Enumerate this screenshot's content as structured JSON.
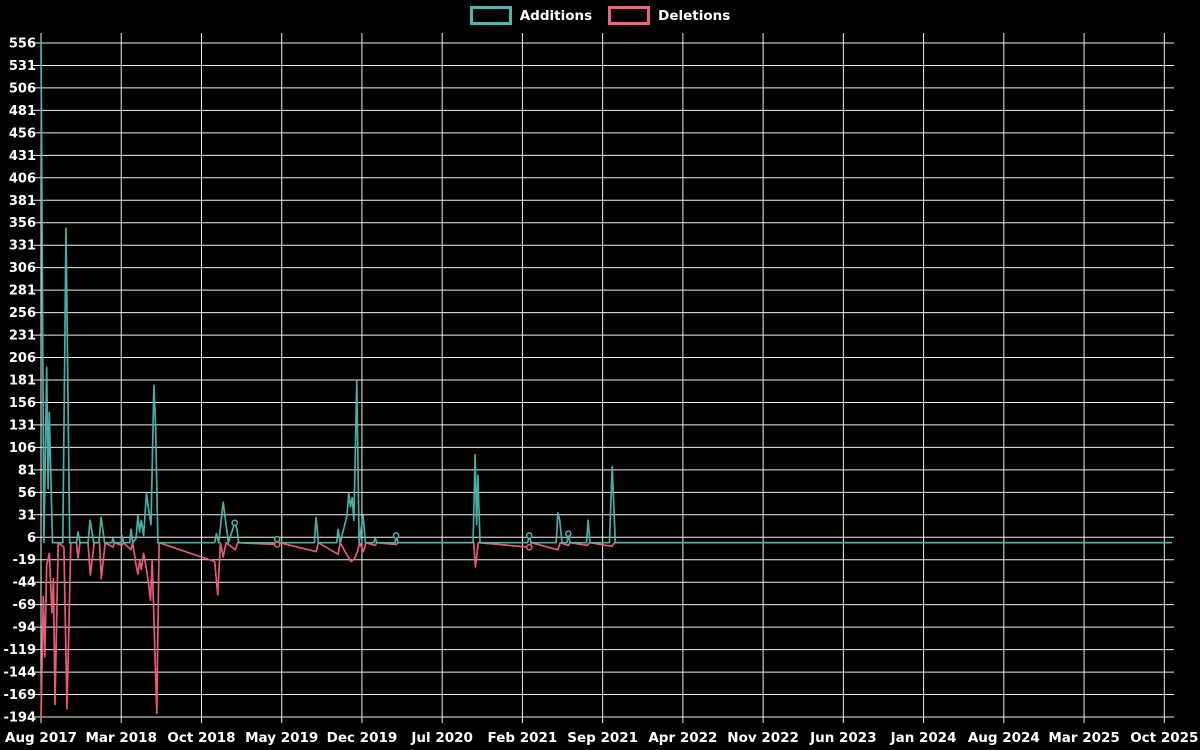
{
  "colors": {
    "background": "#000000",
    "gridline": "#eeeeee",
    "tick_text": "#ffffff",
    "additions": "#4db6ac",
    "deletions": "#f2607a"
  },
  "chart_data": {
    "type": "line",
    "title": "",
    "legend_position": "top-center",
    "grid": true,
    "x_axis": {
      "tick_labels": [
        "Aug 2017",
        "Mar 2018",
        "Oct 2018",
        "May 2019",
        "Dec 2019",
        "Jul 2020",
        "Feb 2021",
        "Sep 2021",
        "Apr 2022",
        "Nov 2022",
        "Jun 2023",
        "Jan 2024",
        "Aug 2024",
        "Mar 2025",
        "Oct 2025"
      ],
      "months_per_tick": 7,
      "x_unit": "months since Aug 2017"
    },
    "y_axis": {
      "min": -194,
      "max": 556,
      "tick_step": 25,
      "tick_labels": [
        "556",
        "531",
        "506",
        "481",
        "456",
        "431",
        "406",
        "381",
        "356",
        "331",
        "306",
        "281",
        "256",
        "231",
        "206",
        "181",
        "156",
        "131",
        "106",
        "81",
        "56",
        "31",
        "6",
        "-19",
        "-44",
        "-69",
        "-94",
        "-119",
        "-144",
        "-169",
        "-194"
      ]
    },
    "series": [
      {
        "name": "Additions",
        "color": "#4db6ac",
        "points": [
          [
            0,
            556
          ],
          [
            0.25,
            0
          ],
          [
            0.5,
            195
          ],
          [
            0.62,
            60
          ],
          [
            0.72,
            145
          ],
          [
            1.0,
            0
          ],
          [
            1.9,
            0
          ],
          [
            2.18,
            350
          ],
          [
            2.5,
            0
          ],
          [
            3.1,
            0
          ],
          [
            3.23,
            12
          ],
          [
            3.4,
            0
          ],
          [
            4.1,
            0
          ],
          [
            4.28,
            25
          ],
          [
            4.6,
            0
          ],
          [
            5.05,
            0
          ],
          [
            5.24,
            28
          ],
          [
            5.55,
            0
          ],
          [
            6.2,
            0
          ],
          [
            6.28,
            5
          ],
          [
            6.4,
            0
          ],
          [
            7.0,
            0
          ],
          [
            7.07,
            8
          ],
          [
            7.2,
            0
          ],
          [
            7.75,
            0
          ],
          [
            7.85,
            15
          ],
          [
            8.0,
            0
          ],
          [
            8.3,
            5
          ],
          [
            8.45,
            30
          ],
          [
            8.6,
            12
          ],
          [
            8.75,
            25
          ],
          [
            8.95,
            8
          ],
          [
            9.2,
            55
          ],
          [
            9.35,
            40
          ],
          [
            9.6,
            20
          ],
          [
            9.85,
            175
          ],
          [
            10.0,
            130
          ],
          [
            10.2,
            0
          ],
          [
            15.15,
            0
          ],
          [
            15.3,
            10
          ],
          [
            15.5,
            0
          ],
          [
            15.9,
            45
          ],
          [
            16.1,
            25
          ],
          [
            16.35,
            0
          ],
          [
            16.9,
            22
          ],
          [
            17.1,
            15
          ],
          [
            17.25,
            0
          ],
          [
            20.5,
            0
          ],
          [
            20.6,
            4
          ],
          [
            20.75,
            0
          ],
          [
            23.85,
            0
          ],
          [
            24.0,
            28
          ],
          [
            24.2,
            0
          ],
          [
            25.8,
            0
          ],
          [
            25.92,
            15
          ],
          [
            26.1,
            0
          ],
          [
            26.7,
            30
          ],
          [
            26.85,
            55
          ],
          [
            27.0,
            40
          ],
          [
            27.15,
            50
          ],
          [
            27.3,
            25
          ],
          [
            27.55,
            180
          ],
          [
            27.75,
            0
          ],
          [
            28.1,
            30
          ],
          [
            28.3,
            0
          ],
          [
            29.05,
            0
          ],
          [
            29.15,
            5
          ],
          [
            29.3,
            0
          ],
          [
            30.9,
            0
          ],
          [
            30.98,
            8
          ],
          [
            31.15,
            0
          ],
          [
            37.7,
            0
          ],
          [
            37.87,
            98
          ],
          [
            38.0,
            20
          ],
          [
            38.12,
            75
          ],
          [
            38.3,
            0
          ],
          [
            42.45,
            0
          ],
          [
            42.6,
            8
          ],
          [
            42.75,
            0
          ],
          [
            44.95,
            0
          ],
          [
            45.1,
            33
          ],
          [
            45.25,
            25
          ],
          [
            45.45,
            0
          ],
          [
            45.9,
            0
          ],
          [
            46.0,
            10
          ],
          [
            46.15,
            0
          ],
          [
            47.6,
            0
          ],
          [
            47.73,
            25
          ],
          [
            47.9,
            0
          ],
          [
            49.6,
            0
          ],
          [
            49.83,
            85
          ],
          [
            50.1,
            0
          ],
          [
            98.6,
            0
          ]
        ],
        "markers": [
          [
            16.9,
            22
          ],
          [
            20.6,
            4
          ],
          [
            30.98,
            8
          ],
          [
            42.6,
            8
          ],
          [
            46.0,
            10
          ]
        ]
      },
      {
        "name": "Deletions",
        "color": "#f2607a",
        "points": [
          [
            0,
            -194
          ],
          [
            0.2,
            -60
          ],
          [
            0.33,
            -127
          ],
          [
            0.5,
            -25
          ],
          [
            0.72,
            -12
          ],
          [
            0.95,
            -78
          ],
          [
            1.08,
            -40
          ],
          [
            1.22,
            -180
          ],
          [
            1.5,
            0
          ],
          [
            2.0,
            -5
          ],
          [
            2.27,
            -185
          ],
          [
            2.6,
            0
          ],
          [
            3.1,
            0
          ],
          [
            3.23,
            -17
          ],
          [
            3.4,
            0
          ],
          [
            4.1,
            0
          ],
          [
            4.3,
            -36
          ],
          [
            4.65,
            0
          ],
          [
            5.1,
            0
          ],
          [
            5.26,
            -40
          ],
          [
            5.6,
            0
          ],
          [
            6.28,
            -5
          ],
          [
            6.4,
            0
          ],
          [
            7.07,
            -3
          ],
          [
            7.2,
            0
          ],
          [
            7.85,
            -8
          ],
          [
            8.0,
            0
          ],
          [
            8.3,
            -25
          ],
          [
            8.45,
            -35
          ],
          [
            8.6,
            -20
          ],
          [
            8.75,
            -30
          ],
          [
            8.95,
            -12
          ],
          [
            9.2,
            -30
          ],
          [
            9.4,
            -47
          ],
          [
            9.55,
            -64
          ],
          [
            9.7,
            -20
          ],
          [
            9.95,
            -125
          ],
          [
            10.1,
            -190
          ],
          [
            10.3,
            0
          ],
          [
            15.15,
            -21
          ],
          [
            15.42,
            -58
          ],
          [
            15.65,
            0
          ],
          [
            15.9,
            -16
          ],
          [
            16.15,
            0
          ],
          [
            16.95,
            -8
          ],
          [
            17.15,
            0
          ],
          [
            20.6,
            -2
          ],
          [
            20.8,
            0
          ],
          [
            24.0,
            -10
          ],
          [
            24.2,
            0
          ],
          [
            25.92,
            -13
          ],
          [
            26.1,
            0
          ],
          [
            26.75,
            -15
          ],
          [
            27.05,
            -21
          ],
          [
            27.35,
            -18
          ],
          [
            27.6,
            -10
          ],
          [
            27.8,
            0
          ],
          [
            28.12,
            -10
          ],
          [
            28.35,
            0
          ],
          [
            29.15,
            -3
          ],
          [
            29.3,
            0
          ],
          [
            30.98,
            -2
          ],
          [
            31.15,
            0
          ],
          [
            37.75,
            0
          ],
          [
            37.9,
            -27
          ],
          [
            38.15,
            0
          ],
          [
            42.6,
            -5
          ],
          [
            42.78,
            0
          ],
          [
            45.1,
            -8
          ],
          [
            45.3,
            0
          ],
          [
            46.0,
            -3
          ],
          [
            46.15,
            0
          ],
          [
            47.65,
            -3
          ],
          [
            47.85,
            0
          ],
          [
            49.8,
            -4
          ],
          [
            50.05,
            0
          ],
          [
            98.6,
            0
          ]
        ],
        "markers": [
          [
            20.6,
            -2
          ],
          [
            42.6,
            -5
          ]
        ]
      }
    ]
  }
}
